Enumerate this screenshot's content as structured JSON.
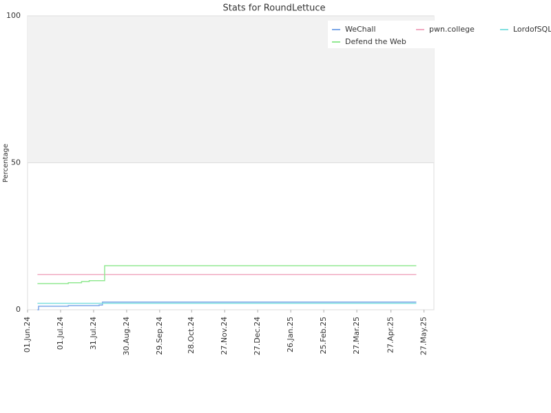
{
  "chart_data": {
    "type": "line",
    "step": true,
    "title": "Stats for RoundLettuce",
    "y_label": "Percentage",
    "xlim": [
      "2024-06-01",
      "2025-06-05"
    ],
    "xticks": [
      {
        "value": "2024-06-01",
        "label": "01.Jun.24"
      },
      {
        "value": "2024-07-01",
        "label": "01.Jul.24"
      },
      {
        "value": "2024-07-31",
        "label": "31.Jul.24"
      },
      {
        "value": "2024-08-30",
        "label": "30.Aug.24"
      },
      {
        "value": "2024-09-29",
        "label": "29.Sep.24"
      },
      {
        "value": "2024-10-28",
        "label": "28.Oct.24"
      },
      {
        "value": "2024-11-27",
        "label": "27.Nov.24"
      },
      {
        "value": "2024-12-27",
        "label": "27.Dec.24"
      },
      {
        "value": "2025-01-26",
        "label": "26.Jan.25"
      },
      {
        "value": "2025-02-25",
        "label": "25.Feb.25"
      },
      {
        "value": "2025-03-27",
        "label": "27.Mar.25"
      },
      {
        "value": "2025-04-27",
        "label": "27.Apr.25"
      },
      {
        "value": "2025-05-27",
        "label": "27.May.25"
      }
    ],
    "ylim": [
      0,
      100
    ],
    "yticks": [
      0,
      50,
      100
    ],
    "grid": true,
    "legend": "top-right",
    "series": [
      {
        "name": "WeChall",
        "color": "#7aa6e8",
        "x": [
          "2024-06-10",
          "2024-06-11",
          "2024-07-08",
          "2024-08-05",
          "2024-08-08",
          "2025-05-20"
        ],
        "values": [
          0,
          1.2,
          1.4,
          1.6,
          2.6,
          2.6
        ]
      },
      {
        "name": "pwn.college",
        "color": "#f0a8c0",
        "x": [
          "2024-06-10",
          "2025-05-20"
        ],
        "values": [
          12,
          12
        ]
      },
      {
        "name": "LordofSQLi",
        "color": "#80e0e0",
        "x": [
          "2024-06-10",
          "2025-05-20"
        ],
        "values": [
          2.2,
          2.2
        ]
      },
      {
        "name": "Defend the Web",
        "color": "#90e890",
        "x": [
          "2024-06-10",
          "2024-07-08",
          "2024-07-20",
          "2024-07-27",
          "2024-08-10",
          "2025-05-20"
        ],
        "values": [
          8.9,
          9.2,
          9.6,
          9.9,
          15,
          15
        ]
      }
    ]
  }
}
